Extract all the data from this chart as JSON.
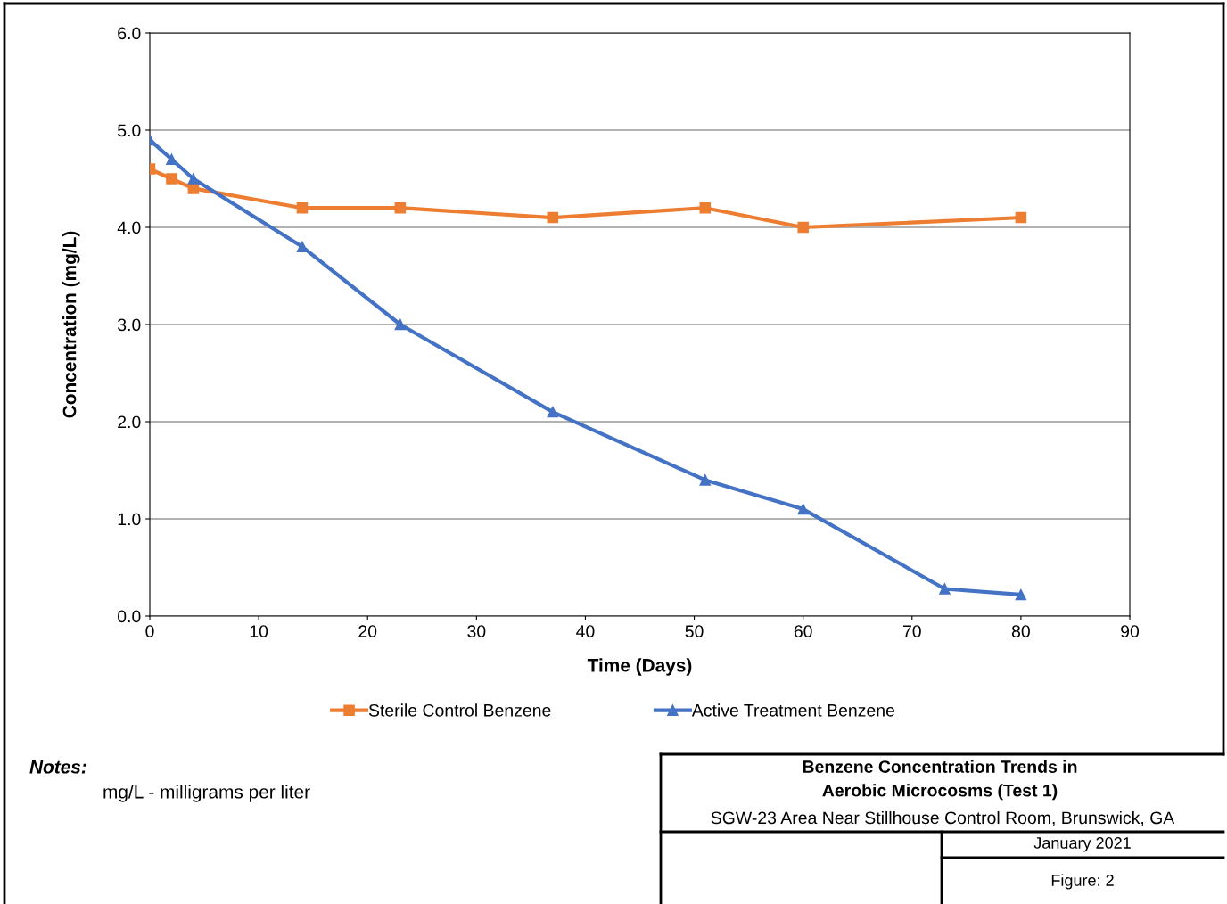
{
  "chart_data": {
    "type": "line",
    "title": "Benzene Concentration Trends in\nAerobic Microcosms (Test 1)",
    "subtitle": "SGW-23 Area Near Stillhouse Control Room, Brunswick, GA",
    "xlabel": "Time (Days)",
    "ylabel": "Concentration (mg/L)",
    "series": [
      {
        "name": "Sterile Control Benzene",
        "color": "#ed7d31",
        "marker": "square",
        "x": [
          0,
          2,
          4,
          14,
          23,
          37,
          51,
          60,
          80
        ],
        "values": [
          4.6,
          4.5,
          4.4,
          4.2,
          4.2,
          4.1,
          4.2,
          4.0,
          4.1
        ]
      },
      {
        "name": "Active Treatment Benzene",
        "color": "#4472c4",
        "marker": "triangle",
        "x": [
          0,
          2,
          4,
          14,
          23,
          37,
          51,
          60,
          73,
          80
        ],
        "values": [
          4.9,
          4.7,
          4.5,
          3.8,
          3.0,
          2.1,
          1.4,
          1.1,
          0.28,
          0.22
        ]
      }
    ],
    "xlim": [
      0,
      90
    ],
    "xticks": [
      0,
      10,
      20,
      30,
      40,
      50,
      60,
      70,
      80,
      90
    ],
    "ylim": [
      0,
      6
    ],
    "yticks": [
      {
        "value": 0,
        "label": "0.0"
      },
      {
        "value": 1,
        "label": "1.0"
      },
      {
        "value": 2,
        "label": "2.0"
      },
      {
        "value": 3,
        "label": "3.0"
      },
      {
        "value": 4,
        "label": "4.0"
      },
      {
        "value": 5,
        "label": "5.0"
      },
      {
        "value": 6,
        "label": "6.0"
      }
    ],
    "grid": "y",
    "legend": "bottom",
    "line_style": "solid",
    "annotations": [
      "Notes:",
      "mg/L - milligrams per liter",
      "January 2021",
      "Figure: 2"
    ]
  }
}
